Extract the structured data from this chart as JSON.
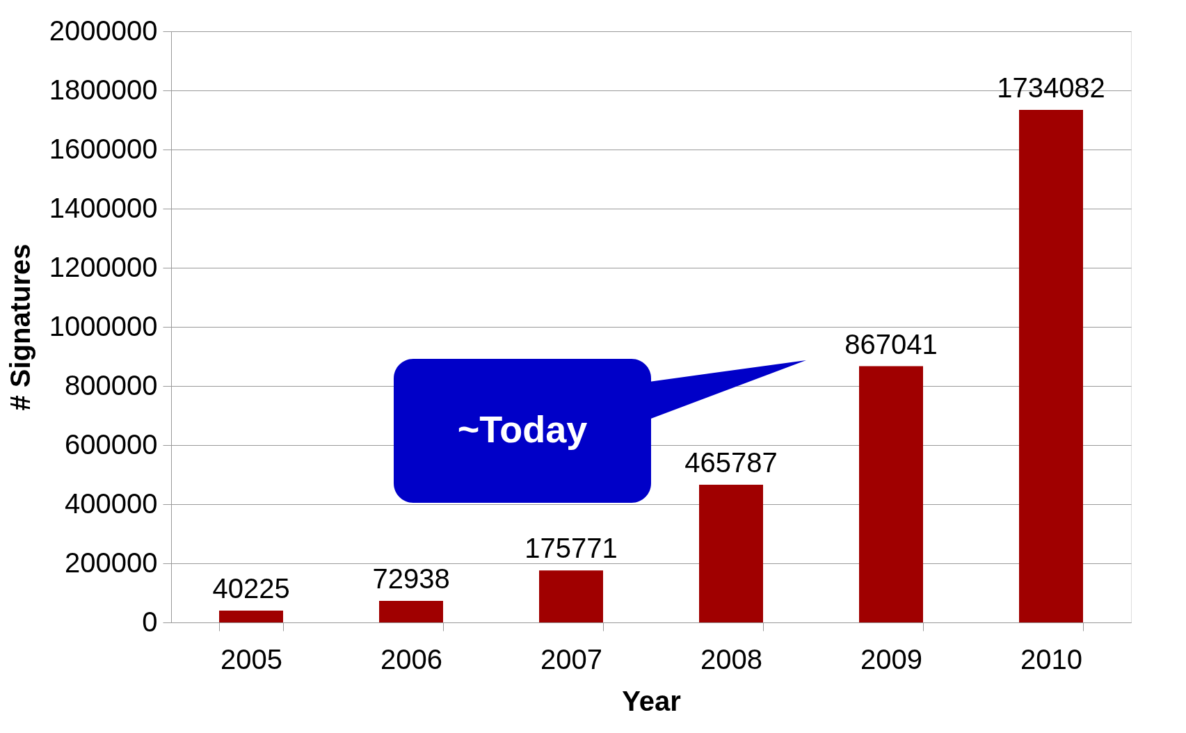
{
  "chart_data": {
    "type": "bar",
    "xlabel": "Year",
    "ylabel": "# Signatures",
    "categories": [
      "2005",
      "2006",
      "2007",
      "2008",
      "2009",
      "2010"
    ],
    "values": [
      40225,
      72938,
      175771,
      465787,
      867041,
      1734082
    ],
    "color": "#a00000",
    "ylim": [
      0,
      2000000
    ],
    "yticks": [
      0,
      200000,
      400000,
      600000,
      800000,
      1000000,
      1200000,
      1400000,
      1600000,
      1800000,
      2000000
    ],
    "grid": "y",
    "data_labels": true,
    "annotations": [
      "~Today"
    ]
  }
}
